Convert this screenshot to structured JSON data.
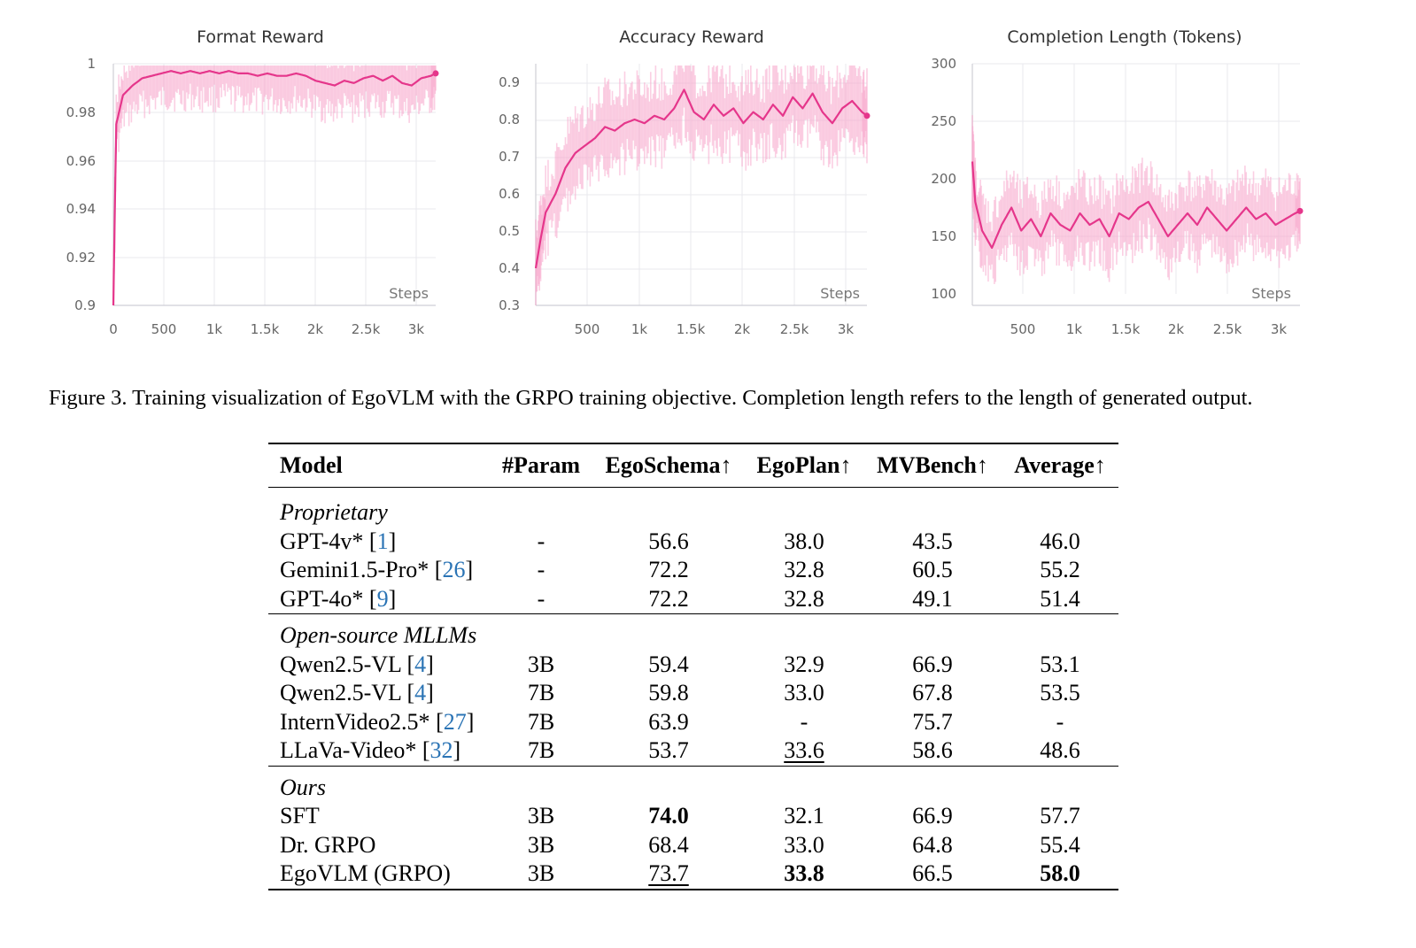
{
  "charts": [
    {
      "title": "Format Reward",
      "x_ticks": [
        "0",
        "500",
        "1k",
        "1.5k",
        "2k",
        "2.5k",
        "3k"
      ],
      "y_ticks": [
        "0.9",
        "0.92",
        "0.94",
        "0.96",
        "0.98",
        "1"
      ],
      "x_axis_label": "Steps"
    },
    {
      "title": "Accuracy Reward",
      "x_ticks": [
        "500",
        "1k",
        "1.5k",
        "2k",
        "2.5k",
        "3k"
      ],
      "y_ticks": [
        "0.3",
        "0.4",
        "0.5",
        "0.6",
        "0.7",
        "0.8",
        "0.9"
      ],
      "x_axis_label": "Steps"
    },
    {
      "title": "Completion Length (Tokens)",
      "x_ticks": [
        "500",
        "1k",
        "1.5k",
        "2k",
        "2.5k",
        "3k"
      ],
      "y_ticks": [
        "100",
        "150",
        "200",
        "250",
        "300"
      ],
      "x_axis_label": "Steps"
    }
  ],
  "chart_data": [
    {
      "type": "line",
      "title": "Format Reward",
      "xlabel": "Steps",
      "ylabel": "",
      "xlim": [
        0,
        3350
      ],
      "ylim": [
        0.9,
        1.0
      ],
      "grid": true,
      "series": [
        {
          "x": [
            0,
            30,
            100,
            200,
            300,
            400,
            500,
            600,
            700,
            800,
            900,
            1000,
            1100,
            1200,
            1300,
            1400,
            1500,
            1600,
            1700,
            1800,
            1900,
            2000,
            2100,
            2200,
            2300,
            2400,
            2500,
            2600,
            2700,
            2800,
            2900,
            3000,
            3100,
            3200,
            3300,
            3350
          ],
          "y": [
            0.9,
            0.975,
            0.987,
            0.991,
            0.994,
            0.995,
            0.996,
            0.997,
            0.996,
            0.997,
            0.996,
            0.997,
            0.996,
            0.997,
            0.996,
            0.996,
            0.995,
            0.996,
            0.995,
            0.995,
            0.996,
            0.995,
            0.993,
            0.992,
            0.991,
            0.993,
            0.992,
            0.994,
            0.995,
            0.993,
            0.995,
            0.992,
            0.991,
            0.994,
            0.995,
            0.996
          ]
        }
      ]
    },
    {
      "type": "line",
      "title": "Accuracy Reward",
      "xlabel": "Steps",
      "ylabel": "",
      "xlim": [
        0,
        3350
      ],
      "ylim": [
        0.3,
        0.95
      ],
      "grid": true,
      "series": [
        {
          "x": [
            0,
            50,
            100,
            200,
            300,
            400,
            500,
            600,
            700,
            800,
            900,
            1000,
            1100,
            1200,
            1300,
            1400,
            1500,
            1600,
            1700,
            1800,
            1900,
            2000,
            2100,
            2200,
            2300,
            2400,
            2500,
            2600,
            2700,
            2800,
            2900,
            3000,
            3100,
            3200,
            3300,
            3350
          ],
          "y": [
            0.4,
            0.48,
            0.55,
            0.6,
            0.67,
            0.71,
            0.73,
            0.75,
            0.78,
            0.77,
            0.79,
            0.8,
            0.79,
            0.81,
            0.8,
            0.83,
            0.88,
            0.82,
            0.8,
            0.84,
            0.81,
            0.83,
            0.79,
            0.82,
            0.8,
            0.84,
            0.81,
            0.86,
            0.83,
            0.87,
            0.82,
            0.79,
            0.83,
            0.85,
            0.82,
            0.81
          ]
        }
      ]
    },
    {
      "type": "line",
      "title": "Completion Length (Tokens)",
      "xlabel": "Steps",
      "ylabel": "",
      "xlim": [
        0,
        3350
      ],
      "ylim": [
        100,
        300
      ],
      "grid": true,
      "series": [
        {
          "x": [
            0,
            30,
            100,
            200,
            300,
            400,
            500,
            600,
            700,
            800,
            900,
            1000,
            1100,
            1200,
            1300,
            1400,
            1500,
            1600,
            1700,
            1800,
            1900,
            2000,
            2100,
            2200,
            2300,
            2400,
            2500,
            2600,
            2700,
            2800,
            2900,
            3000,
            3100,
            3200,
            3300,
            3350
          ],
          "y": [
            215,
            180,
            155,
            140,
            160,
            175,
            155,
            165,
            150,
            170,
            160,
            155,
            170,
            160,
            165,
            150,
            170,
            165,
            175,
            180,
            165,
            150,
            160,
            170,
            160,
            175,
            165,
            155,
            165,
            175,
            165,
            170,
            160,
            165,
            170,
            172
          ]
        }
      ]
    }
  ],
  "caption": "Figure 3. Training visualization of EgoVLM with the GRPO training objective. Completion length refers to the length of generated output.",
  "table": {
    "headers": [
      "Model",
      "#Param",
      "EgoSchema↑",
      "EgoPlan↑",
      "MVBench↑",
      "Average↑"
    ],
    "sections": [
      {
        "name": "Proprietary",
        "rows": [
          {
            "model": "GPT-4v*",
            "ref": "1",
            "param": "-",
            "egoschema": "56.6",
            "egoplan": "38.0",
            "mvbench": "43.5",
            "average": "46.0"
          },
          {
            "model": "Gemini1.5-Pro*",
            "ref": "26",
            "param": "-",
            "egoschema": "72.2",
            "egoplan": "32.8",
            "mvbench": "60.5",
            "average": "55.2"
          },
          {
            "model": "GPT-4o*",
            "ref": "9",
            "param": "-",
            "egoschema": "72.2",
            "egoplan": "32.8",
            "mvbench": "49.1",
            "average": "51.4"
          }
        ]
      },
      {
        "name": "Open-source MLLMs",
        "rows": [
          {
            "model": "Qwen2.5-VL",
            "ref": "4",
            "param": "3B",
            "egoschema": "59.4",
            "egoplan": "32.9",
            "mvbench": "66.9",
            "average": "53.1"
          },
          {
            "model": "Qwen2.5-VL",
            "ref": "4",
            "param": "7B",
            "egoschema": "59.8",
            "egoplan": "33.0",
            "mvbench": "67.8",
            "average": "53.5"
          },
          {
            "model": "InternVideo2.5*",
            "ref": "27",
            "param": "7B",
            "egoschema": "63.9",
            "egoplan": "-",
            "mvbench": "75.7",
            "average": "-"
          },
          {
            "model": "LLaVa-Video*",
            "ref": "32",
            "param": "7B",
            "egoschema": "53.7",
            "egoplan": "33.6",
            "mvbench": "58.6",
            "average": "48.6"
          }
        ]
      },
      {
        "name": "Ours",
        "rows": [
          {
            "model": "SFT",
            "param": "3B",
            "egoschema": "74.0",
            "egoplan": "32.1",
            "mvbench": "66.9",
            "average": "57.7"
          },
          {
            "model": "Dr. GRPO",
            "param": "3B",
            "egoschema": "68.4",
            "egoplan": "33.0",
            "mvbench": "64.8",
            "average": "55.4"
          },
          {
            "model": "EgoVLM (GRPO)",
            "param": "3B",
            "egoschema": "73.7",
            "egoplan": "33.8",
            "mvbench": "66.5",
            "average": "58.0"
          }
        ]
      }
    ]
  }
}
